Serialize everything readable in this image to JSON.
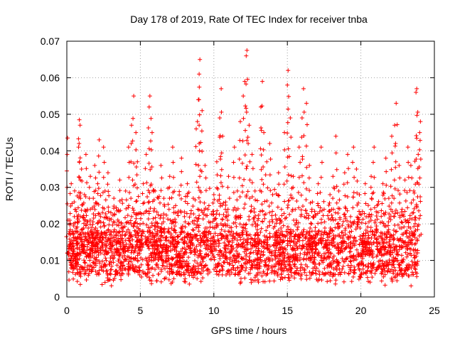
{
  "chart_data": {
    "type": "scatter",
    "title": "Day 178 of 2019, Rate Of TEC Index for receiver tnba",
    "xlabel": "GPS time / hours",
    "ylabel": "ROTI / TECUs",
    "xlim": [
      0,
      25
    ],
    "ylim": [
      0,
      0.07
    ],
    "x_ticks": [
      0,
      5,
      10,
      15,
      20,
      25
    ],
    "x_tick_labels": [
      "0",
      "5",
      "10",
      "15",
      "20",
      "25"
    ],
    "y_ticks": [
      0,
      0.01,
      0.02,
      0.03,
      0.04,
      0.05,
      0.06,
      0.07
    ],
    "y_tick_labels": [
      "0",
      "0.01",
      "0.02",
      "0.03",
      "0.04",
      "0.05",
      "0.06",
      "0.07"
    ],
    "grid": true,
    "marker": "plus",
    "color": "#ff0000",
    "series": [
      {
        "points": [
          [
            0.05,
            0.0435
          ],
          [
            0.1,
            0.012
          ],
          [
            0.2,
            0.021
          ],
          [
            0.3,
            0.031
          ],
          [
            0.4,
            0.018
          ],
          [
            0.5,
            0.026
          ],
          [
            0.6,
            0.009
          ],
          [
            0.7,
            0.022
          ],
          [
            0.8,
            0.041
          ],
          [
            0.85,
            0.0485
          ],
          [
            0.9,
            0.047
          ],
          [
            1.0,
            0.035
          ],
          [
            1.1,
            0.014
          ],
          [
            1.2,
            0.028
          ],
          [
            1.3,
            0.039
          ],
          [
            1.4,
            0.024
          ],
          [
            1.5,
            0.011
          ],
          [
            1.6,
            0.033
          ],
          [
            1.7,
            0.019
          ],
          [
            1.8,
            0.027
          ],
          [
            1.9,
            0.036
          ],
          [
            2.0,
            0.015
          ],
          [
            2.1,
            0.031
          ],
          [
            2.2,
            0.043
          ],
          [
            2.3,
            0.022
          ],
          [
            2.4,
            0.017
          ],
          [
            2.5,
            0.041
          ],
          [
            2.6,
            0.029
          ],
          [
            2.7,
            0.012
          ],
          [
            2.8,
            0.034
          ],
          [
            2.9,
            0.021
          ],
          [
            3.0,
            0.016
          ],
          [
            3.2,
            0.027
          ],
          [
            3.4,
            0.013
          ],
          [
            3.6,
            0.032
          ],
          [
            3.8,
            0.019
          ],
          [
            4.0,
            0.029
          ],
          [
            4.2,
            0.041
          ],
          [
            4.4,
            0.047
          ],
          [
            4.55,
            0.055
          ],
          [
            4.7,
            0.045
          ],
          [
            4.8,
            0.037
          ],
          [
            5.0,
            0.023
          ],
          [
            5.2,
            0.031
          ],
          [
            5.4,
            0.039
          ],
          [
            5.6,
            0.052
          ],
          [
            5.65,
            0.055
          ],
          [
            5.8,
            0.045
          ],
          [
            6.0,
            0.029
          ],
          [
            6.2,
            0.019
          ],
          [
            6.4,
            0.036
          ],
          [
            6.6,
            0.027
          ],
          [
            6.8,
            0.014
          ],
          [
            7.0,
            0.033
          ],
          [
            7.2,
            0.041
          ],
          [
            7.4,
            0.025
          ],
          [
            7.6,
            0.011
          ],
          [
            7.8,
            0.038
          ],
          [
            8.0,
            0.022
          ],
          [
            8.2,
            0.031
          ],
          [
            8.4,
            0.017
          ],
          [
            8.6,
            0.027
          ],
          [
            8.8,
            0.046
          ],
          [
            8.95,
            0.054
          ],
          [
            9.0,
            0.061
          ],
          [
            9.05,
            0.065
          ],
          [
            9.2,
            0.051
          ],
          [
            9.4,
            0.036
          ],
          [
            9.6,
            0.024
          ],
          [
            9.8,
            0.014
          ],
          [
            10.0,
            0.028
          ],
          [
            10.2,
            0.037
          ],
          [
            10.4,
            0.049
          ],
          [
            10.5,
            0.057
          ],
          [
            10.6,
            0.044
          ],
          [
            10.8,
            0.026
          ],
          [
            11.0,
            0.033
          ],
          [
            11.2,
            0.019
          ],
          [
            11.4,
            0.041
          ],
          [
            11.6,
            0.029
          ],
          [
            11.8,
            0.048
          ],
          [
            12.0,
            0.055
          ],
          [
            12.1,
            0.059
          ],
          [
            12.2,
            0.066
          ],
          [
            12.25,
            0.0675
          ],
          [
            12.4,
            0.047
          ],
          [
            12.6,
            0.039
          ],
          [
            12.8,
            0.029
          ],
          [
            13.0,
            0.021
          ],
          [
            13.2,
            0.052
          ],
          [
            13.3,
            0.059
          ],
          [
            13.4,
            0.045
          ],
          [
            13.6,
            0.037
          ],
          [
            13.8,
            0.042
          ],
          [
            14.0,
            0.028
          ],
          [
            14.2,
            0.017
          ],
          [
            14.4,
            0.034
          ],
          [
            14.6,
            0.024
          ],
          [
            14.8,
            0.045
          ],
          [
            15.0,
            0.058
          ],
          [
            15.05,
            0.062
          ],
          [
            15.2,
            0.049
          ],
          [
            15.4,
            0.033
          ],
          [
            15.6,
            0.021
          ],
          [
            15.8,
            0.041
          ],
          [
            16.0,
            0.049
          ],
          [
            16.1,
            0.057
          ],
          [
            16.3,
            0.053
          ],
          [
            16.5,
            0.036
          ],
          [
            16.7,
            0.026
          ],
          [
            16.9,
            0.019
          ],
          [
            17.1,
            0.031
          ],
          [
            17.3,
            0.041
          ],
          [
            17.5,
            0.024
          ],
          [
            17.7,
            0.017
          ],
          [
            17.9,
            0.028
          ],
          [
            18.1,
            0.033
          ],
          [
            18.3,
            0.044
          ],
          [
            18.5,
            0.029
          ],
          [
            18.7,
            0.015
          ],
          [
            18.9,
            0.034
          ],
          [
            19.1,
            0.039
          ],
          [
            19.3,
            0.022
          ],
          [
            19.5,
            0.041
          ],
          [
            19.7,
            0.035
          ],
          [
            19.9,
            0.028
          ],
          [
            20.1,
            0.016
          ],
          [
            20.3,
            0.031
          ],
          [
            20.5,
            0.022
          ],
          [
            20.7,
            0.033
          ],
          [
            20.9,
            0.041
          ],
          [
            21.1,
            0.025
          ],
          [
            21.3,
            0.013
          ],
          [
            21.5,
            0.031
          ],
          [
            21.7,
            0.038
          ],
          [
            21.9,
            0.027
          ],
          [
            22.1,
            0.044
          ],
          [
            22.3,
            0.047
          ],
          [
            22.4,
            0.053
          ],
          [
            22.6,
            0.036
          ],
          [
            22.8,
            0.024
          ],
          [
            23.0,
            0.032
          ],
          [
            23.2,
            0.041
          ],
          [
            23.4,
            0.036
          ],
          [
            23.6,
            0.029
          ],
          [
            23.75,
            0.056
          ],
          [
            23.8,
            0.057
          ],
          [
            23.9,
            0.039
          ],
          [
            24.0,
            0.045
          ],
          [
            24.05,
            0.048
          ]
        ]
      }
    ],
    "baseline_band": {
      "x_range": [
        0.1,
        23.9
      ],
      "y_range": [
        0.003,
        0.03
      ],
      "note": "dense cloud of ROTI values concentrated between 0.005 and 0.02"
    }
  }
}
